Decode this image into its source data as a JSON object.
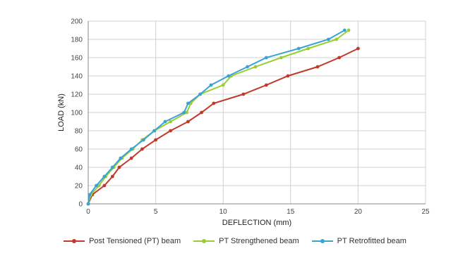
{
  "chart_data": {
    "type": "line",
    "title": "",
    "xlabel": "DEFLECTION (mm)",
    "ylabel": "LOAD (kN)",
    "xlim": [
      0,
      25
    ],
    "ylim": [
      0,
      200
    ],
    "x_ticks": [
      0,
      5,
      10,
      15,
      20,
      25
    ],
    "y_ticks": [
      0,
      20,
      40,
      60,
      80,
      100,
      120,
      140,
      160,
      180,
      200
    ],
    "grid": true,
    "legend_position": "bottom",
    "series": [
      {
        "name": "Post Tensioned (PT) beam",
        "color": "#c0392b",
        "points": [
          [
            0,
            0
          ],
          [
            0.3,
            10
          ],
          [
            1.2,
            20
          ],
          [
            1.8,
            30
          ],
          [
            2.3,
            40
          ],
          [
            3.2,
            50
          ],
          [
            4,
            60
          ],
          [
            5,
            70
          ],
          [
            6.1,
            80
          ],
          [
            7.4,
            90
          ],
          [
            8.4,
            100
          ],
          [
            9.3,
            110
          ],
          [
            11.5,
            120
          ],
          [
            13.2,
            130
          ],
          [
            14.8,
            140
          ],
          [
            17,
            150
          ],
          [
            18.6,
            160
          ],
          [
            20,
            170
          ]
        ]
      },
      {
        "name": "PT Strengthened beam",
        "color": "#9acd32",
        "points": [
          [
            0,
            0
          ],
          [
            0.2,
            10
          ],
          [
            0.8,
            20
          ],
          [
            1.3,
            30
          ],
          [
            1.9,
            40
          ],
          [
            2.5,
            50
          ],
          [
            3.3,
            60
          ],
          [
            4,
            70
          ],
          [
            4.9,
            80
          ],
          [
            6.1,
            90
          ],
          [
            7.3,
            100
          ],
          [
            7.6,
            110
          ],
          [
            8.3,
            120
          ],
          [
            10,
            130
          ],
          [
            10.6,
            140
          ],
          [
            12.4,
            150
          ],
          [
            14.3,
            160
          ],
          [
            16.3,
            170
          ],
          [
            18.4,
            180
          ],
          [
            19.3,
            190
          ]
        ]
      },
      {
        "name": "PT Retrofitted beam",
        "color": "#3aa3d4",
        "points": [
          [
            0,
            0
          ],
          [
            0.1,
            10
          ],
          [
            0.6,
            20
          ],
          [
            1.2,
            30
          ],
          [
            1.8,
            40
          ],
          [
            2.4,
            50
          ],
          [
            3.2,
            60
          ],
          [
            4.1,
            70
          ],
          [
            4.9,
            80
          ],
          [
            5.7,
            90
          ],
          [
            7.1,
            100
          ],
          [
            7.4,
            110
          ],
          [
            8.3,
            120
          ],
          [
            9.1,
            130
          ],
          [
            10.4,
            140
          ],
          [
            11.8,
            150
          ],
          [
            13.2,
            160
          ],
          [
            15.6,
            170
          ],
          [
            17.8,
            180
          ],
          [
            19,
            190
          ]
        ]
      }
    ]
  }
}
